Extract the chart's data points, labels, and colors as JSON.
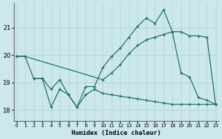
{
  "xlabel": "Humidex (Indice chaleur)",
  "background_color": "#cce8ec",
  "grid_color": "#aad0d5",
  "line_color": "#1a6b6b",
  "x_ticks": [
    0,
    1,
    2,
    3,
    4,
    5,
    6,
    7,
    8,
    9,
    10,
    11,
    12,
    13,
    14,
    15,
    16,
    17,
    18,
    19,
    20,
    21,
    22,
    23
  ],
  "y_ticks": [
    18,
    19,
    20,
    21
  ],
  "ylim": [
    17.6,
    21.9
  ],
  "xlim": [
    -0.3,
    23.3
  ],
  "line_peaked_x": [
    0,
    1,
    2,
    3,
    4,
    5,
    6,
    7,
    8,
    9,
    10,
    11,
    12,
    13,
    14,
    15,
    16,
    17,
    18,
    19,
    20,
    21,
    22,
    23
  ],
  "line_peaked_y": [
    19.95,
    19.95,
    19.15,
    19.15,
    18.75,
    19.1,
    18.55,
    18.1,
    18.85,
    18.85,
    19.55,
    19.95,
    20.25,
    20.65,
    21.05,
    21.35,
    21.15,
    21.65,
    20.85,
    19.35,
    19.2,
    18.45,
    18.35,
    18.2
  ],
  "line_smooth_x": [
    0,
    1,
    10,
    11,
    12,
    13,
    14,
    15,
    16,
    17,
    18,
    19,
    20,
    21,
    22,
    23
  ],
  "line_smooth_y": [
    19.95,
    19.95,
    19.1,
    19.35,
    19.65,
    20.05,
    20.35,
    20.55,
    20.65,
    20.75,
    20.85,
    20.85,
    20.7,
    20.7,
    20.65,
    18.2
  ],
  "line_low_x": [
    2,
    3,
    4,
    5,
    6,
    7,
    8,
    9,
    10,
    11,
    12,
    13,
    14,
    15,
    16,
    17,
    18,
    19,
    20,
    21,
    22,
    23
  ],
  "line_low_y": [
    19.15,
    19.15,
    18.1,
    18.75,
    18.55,
    18.1,
    18.55,
    18.75,
    18.6,
    18.55,
    18.5,
    18.45,
    18.4,
    18.35,
    18.3,
    18.25,
    18.2,
    18.2,
    18.2,
    18.2,
    18.2,
    18.2
  ]
}
